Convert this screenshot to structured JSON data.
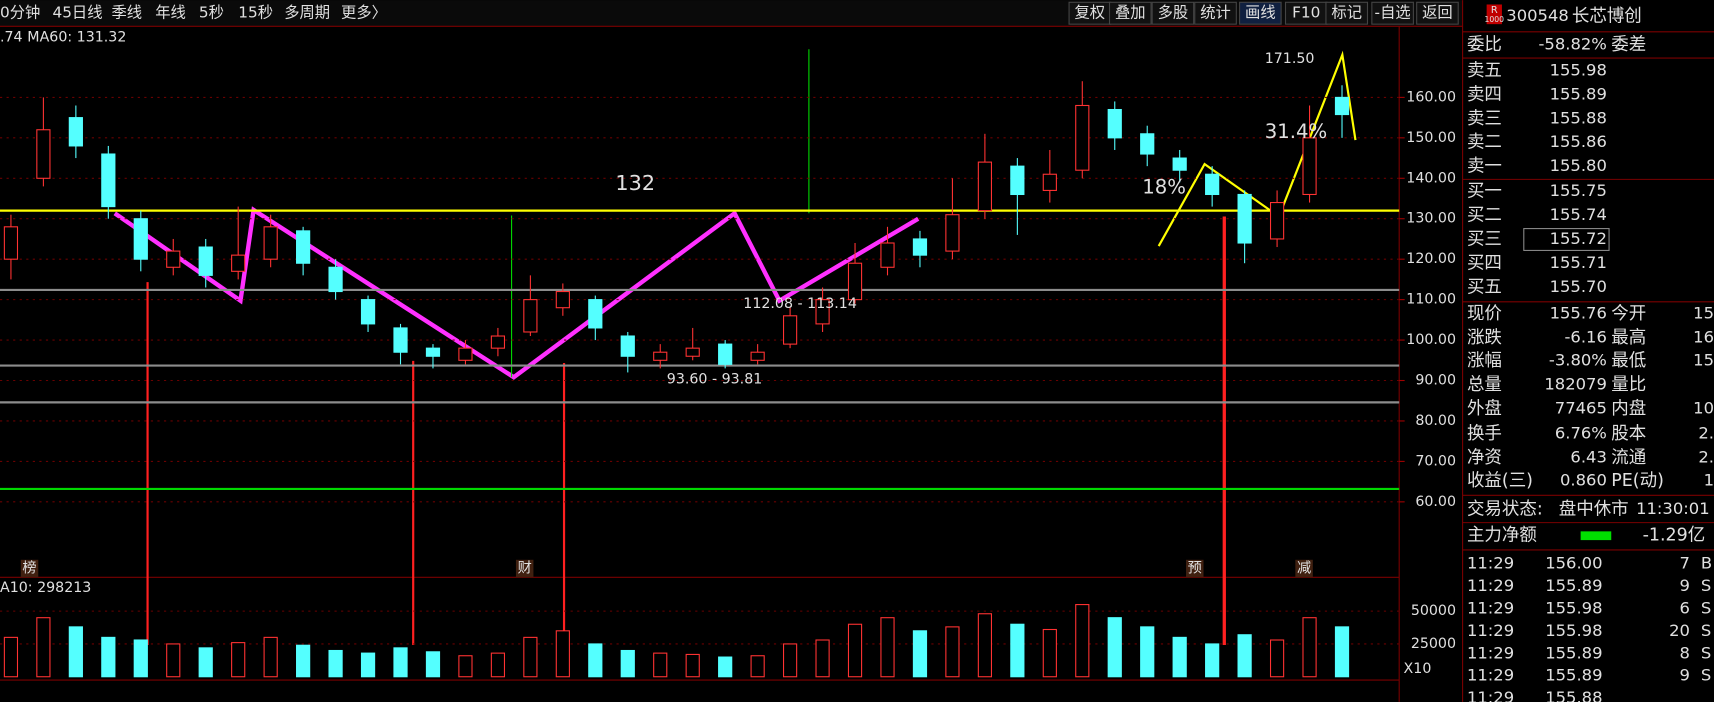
{
  "toolbar": {
    "left": [
      "0分钟",
      "45日线",
      "季线",
      "年线",
      "5秒",
      "15秒",
      "多周期",
      "更多〉"
    ],
    "right": [
      "复权",
      "叠加",
      "多股",
      "统计",
      "画线",
      "F10",
      "标记",
      "-自选",
      "返回"
    ]
  },
  "stock": {
    "badge": "R",
    "badge_sub": "1000",
    "code": "300548",
    "name": "长芯博创"
  },
  "order_ratio": {
    "label": "委比",
    "value": "-58.82%",
    "label2": "委差"
  },
  "asks": [
    [
      "卖五",
      "155.98"
    ],
    [
      "卖四",
      "155.89"
    ],
    [
      "卖三",
      "155.88"
    ],
    [
      "卖二",
      "155.86"
    ],
    [
      "卖一",
      "155.80"
    ]
  ],
  "bids": [
    [
      "买一",
      "155.75"
    ],
    [
      "买二",
      "155.74"
    ],
    [
      "买三",
      "155.72"
    ],
    [
      "买四",
      "155.71"
    ],
    [
      "买五",
      "155.70"
    ]
  ],
  "stats": [
    [
      "现价",
      "155.76",
      "今开",
      "15"
    ],
    [
      "涨跌",
      "-6.16",
      "最高",
      "16"
    ],
    [
      "涨幅",
      "-3.80%",
      "最低",
      "15"
    ],
    [
      "总量",
      "182079",
      "量比",
      ""
    ],
    [
      "外盘",
      "77465",
      "内盘",
      "10"
    ],
    [
      "换手",
      "6.76%",
      "股本",
      "2."
    ],
    [
      "净资",
      "6.43",
      "流通",
      "2."
    ],
    [
      "收益(三)",
      "0.860",
      "PE(动)",
      "1"
    ]
  ],
  "status": {
    "label": "交易状态:",
    "value": "盘中休市",
    "time": "11:30:01"
  },
  "main_flow": {
    "label": "主力净额",
    "value": "-1.29亿"
  },
  "trades": [
    [
      "11:29",
      "156.00",
      "7",
      "B"
    ],
    [
      "11:29",
      "155.89",
      "9",
      "S"
    ],
    [
      "11:29",
      "155.98",
      "6",
      "S"
    ],
    [
      "11:29",
      "155.98",
      "20",
      "S"
    ],
    [
      "11:29",
      "155.89",
      "8",
      "S"
    ],
    [
      "11:29",
      "155.89",
      "9",
      "S"
    ],
    [
      "11:29",
      "155.88",
      "",
      ""
    ]
  ],
  "chart_data": {
    "type": "candlestick",
    "ma_legend": [
      ".74",
      "MA60: 131.32"
    ],
    "volume_legend": "A10: 298213",
    "annotations": [
      "132",
      "112.08 - 113.14",
      "93.60 - 93.81",
      "171.50",
      "18%",
      "31.4%"
    ],
    "events": [
      "榜",
      "财",
      "预",
      "减"
    ],
    "zoom_label": "X10",
    "ylim": [
      41.4,
      176.5
    ],
    "yticks": [
      {
        "value": 160,
        "label": "160.00"
      },
      {
        "value": 150,
        "label": "150.00"
      },
      {
        "value": 140,
        "label": "140.00"
      },
      {
        "value": 130,
        "label": "130.00"
      },
      {
        "value": 120,
        "label": "120.00"
      },
      {
        "value": 110,
        "label": "110.00"
      },
      {
        "value": 100,
        "label": "100.00"
      },
      {
        "value": 90,
        "label": "90.00"
      },
      {
        "value": 80,
        "label": "80.00"
      },
      {
        "value": 70,
        "label": "70.00"
      },
      {
        "value": 60,
        "label": "60.00"
      }
    ],
    "vlim": [
      0,
      75800
    ],
    "vticks": [
      50000,
      25000
    ],
    "levels": [
      {
        "value": 132,
        "color": "#ffff00"
      },
      {
        "value": 112.4,
        "color": "#8c8c8c"
      },
      {
        "value": 93.7,
        "color": "#8c8c8c"
      },
      {
        "value": 84.6,
        "color": "#8c8c8c"
      },
      {
        "value": 63.2,
        "color": "#00d800"
      }
    ],
    "up_color": "#ff3232",
    "down_color": "#54ffff",
    "open": [
      120,
      140,
      155,
      146,
      130,
      118,
      123,
      117,
      120,
      127,
      118,
      110,
      103,
      98,
      95,
      98,
      102,
      108,
      110,
      101,
      95,
      96,
      99,
      95,
      99,
      104,
      110,
      118,
      125,
      122,
      132,
      143,
      137,
      142,
      157,
      151,
      145,
      141,
      136,
      125,
      136,
      160
    ],
    "high": [
      131,
      160,
      158,
      148,
      132,
      125,
      125,
      133,
      131,
      128,
      120,
      111,
      104,
      99,
      100,
      103,
      116,
      114,
      111,
      102,
      99,
      103,
      100,
      99,
      108,
      113,
      124,
      128,
      127,
      140,
      151,
      145,
      147,
      164,
      159,
      153,
      147,
      143,
      137,
      137,
      158,
      163
    ],
    "low": [
      115,
      138,
      145,
      130,
      117,
      116,
      113,
      115,
      118,
      116,
      110,
      102,
      94,
      93,
      94,
      96,
      101,
      106,
      100,
      92,
      93,
      95,
      93,
      94,
      98,
      102,
      109,
      116,
      118,
      120,
      130,
      126,
      134,
      140,
      147,
      143,
      139,
      133,
      119,
      123,
      134,
      150
    ],
    "close": [
      128,
      152,
      148,
      133,
      120,
      122,
      116,
      121,
      128,
      119,
      112,
      104,
      97,
      96,
      98,
      101,
      110,
      112,
      103,
      96,
      97,
      98,
      94,
      97,
      106,
      110,
      119,
      124,
      121,
      131,
      144,
      136,
      141,
      158,
      150,
      146,
      142,
      136,
      124,
      134,
      150,
      155.76
    ],
    "volume": [
      30000,
      45000,
      38000,
      30000,
      28000,
      25000,
      22000,
      26000,
      30000,
      24000,
      20000,
      18000,
      22000,
      19000,
      16000,
      18000,
      30000,
      35000,
      25000,
      20000,
      18000,
      17000,
      15000,
      16000,
      25000,
      28000,
      40000,
      45000,
      35000,
      38000,
      48000,
      40000,
      36000,
      55000,
      45000,
      38000,
      30000,
      25000,
      32000,
      28000,
      45000,
      38000
    ]
  }
}
